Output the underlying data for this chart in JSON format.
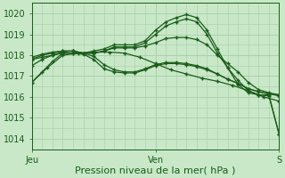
{
  "bg_color": "#c8e8c8",
  "grid_color": "#aaccaa",
  "line_color": "#1a5c1a",
  "marker": "+",
  "xlabel": "Pression niveau de la mer( hPa )",
  "xlabel_fontsize": 8,
  "xtick_labels": [
    "Jeu",
    "Ven",
    "S"
  ],
  "xtick_positions": [
    0,
    48,
    96
  ],
  "ylim": [
    1013.5,
    1020.5
  ],
  "yticks": [
    1014,
    1015,
    1016,
    1017,
    1018,
    1019,
    1020
  ],
  "xlim": [
    0,
    96
  ],
  "n_points": 97,
  "series": [
    {
      "x": [
        0,
        4,
        8,
        12,
        16,
        20,
        24,
        28,
        32,
        36,
        40,
        44,
        48,
        52,
        56,
        60,
        64,
        68,
        72,
        76,
        80,
        84,
        88,
        92,
        96
      ],
      "y": [
        1016.7,
        1017.2,
        1017.7,
        1018.1,
        1018.1,
        1018.1,
        1018.2,
        1018.3,
        1018.5,
        1018.5,
        1018.5,
        1018.7,
        1019.2,
        1019.6,
        1019.8,
        1019.95,
        1019.8,
        1019.2,
        1018.3,
        1017.4,
        1016.6,
        1016.2,
        1016.1,
        1016.1,
        1014.2
      ]
    },
    {
      "x": [
        0,
        4,
        8,
        12,
        16,
        20,
        24,
        28,
        32,
        36,
        40,
        44,
        48,
        52,
        56,
        60,
        64,
        68,
        72,
        76,
        80,
        84,
        88,
        92,
        96
      ],
      "y": [
        1017.5,
        1017.8,
        1018.0,
        1018.15,
        1018.2,
        1018.1,
        1018.1,
        1018.2,
        1018.4,
        1018.4,
        1018.4,
        1018.6,
        1019.0,
        1019.4,
        1019.6,
        1019.75,
        1019.6,
        1019.0,
        1018.1,
        1017.4,
        1016.8,
        1016.3,
        1016.1,
        1016.05,
        1014.2
      ]
    },
    {
      "x": [
        0,
        4,
        8,
        12,
        16,
        20,
        24,
        28,
        32,
        36,
        40,
        44,
        48,
        52,
        56,
        60,
        64,
        68,
        72,
        76,
        80,
        84,
        88,
        92,
        96
      ],
      "y": [
        1017.8,
        1018.0,
        1018.1,
        1018.2,
        1018.2,
        1018.1,
        1018.1,
        1018.2,
        1018.35,
        1018.35,
        1018.35,
        1018.45,
        1018.6,
        1018.8,
        1018.85,
        1018.85,
        1018.75,
        1018.5,
        1018.0,
        1017.6,
        1017.2,
        1016.7,
        1016.35,
        1016.2,
        1016.1
      ]
    },
    {
      "x": [
        0,
        4,
        8,
        12,
        16,
        20,
        24,
        28,
        32,
        36,
        40,
        44,
        48,
        52,
        56,
        60,
        64,
        68,
        72,
        76,
        80,
        84,
        88,
        92,
        96
      ],
      "y": [
        1017.9,
        1018.05,
        1018.15,
        1018.2,
        1018.2,
        1018.1,
        1017.95,
        1017.55,
        1017.3,
        1017.2,
        1017.2,
        1017.35,
        1017.55,
        1017.65,
        1017.65,
        1017.6,
        1017.5,
        1017.35,
        1017.1,
        1016.85,
        1016.65,
        1016.4,
        1016.25,
        1016.15,
        1016.1
      ]
    },
    {
      "x": [
        0,
        4,
        8,
        12,
        16,
        20,
        24,
        28,
        32,
        36,
        40,
        44,
        48,
        52,
        56,
        60,
        64,
        68,
        72,
        76,
        80,
        84,
        88,
        92,
        96
      ],
      "y": [
        1017.8,
        1017.9,
        1018.0,
        1018.1,
        1018.1,
        1018.05,
        1017.8,
        1017.35,
        1017.2,
        1017.15,
        1017.15,
        1017.3,
        1017.5,
        1017.6,
        1017.6,
        1017.55,
        1017.45,
        1017.3,
        1017.1,
        1016.85,
        1016.65,
        1016.4,
        1016.25,
        1016.15,
        1016.05
      ]
    },
    {
      "x": [
        0,
        6,
        12,
        18,
        24,
        30,
        36,
        42,
        48,
        54,
        60,
        66,
        72,
        78,
        84,
        90,
        96
      ],
      "y": [
        1016.7,
        1017.4,
        1018.0,
        1018.1,
        1018.15,
        1018.15,
        1018.1,
        1017.9,
        1017.6,
        1017.3,
        1017.1,
        1016.9,
        1016.75,
        1016.55,
        1016.3,
        1016.0,
        1015.8
      ]
    }
  ]
}
